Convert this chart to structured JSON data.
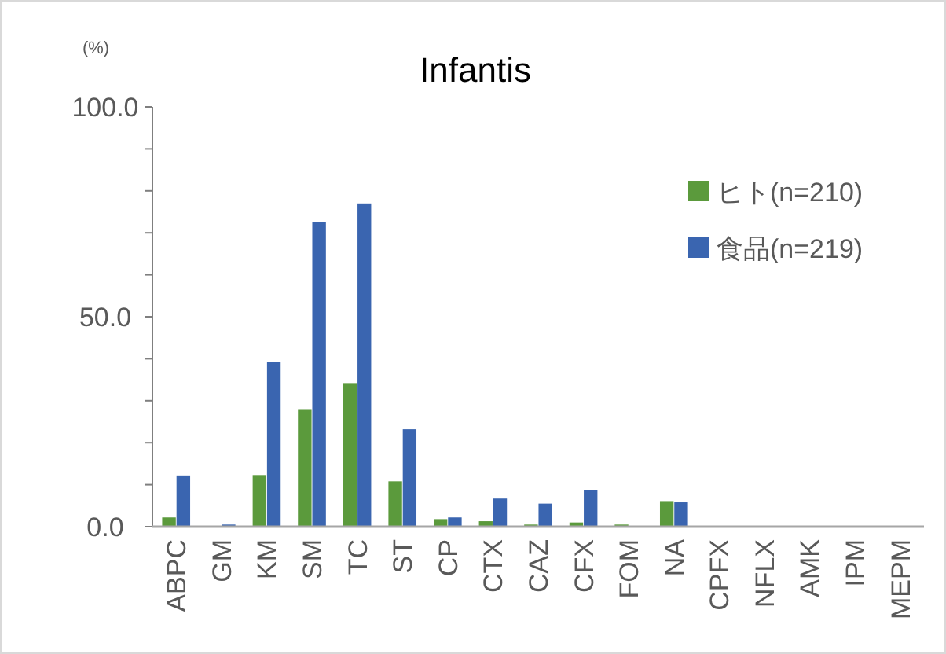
{
  "chart_data": {
    "type": "bar",
    "title": "Infantis",
    "ylabel": "(%)",
    "categories": [
      "ABPC",
      "GM",
      "KM",
      "SM",
      "TC",
      "ST",
      "CP",
      "CTX",
      "CAZ",
      "CFX",
      "FOM",
      "NA",
      "CPFX",
      "NFLX",
      "AMK",
      "IPM",
      "MEPM"
    ],
    "series": [
      {
        "name": "ヒト(n=210)",
        "color": "#5b9a3c",
        "values": [
          2.2,
          0,
          12.3,
          28.0,
          34.2,
          10.8,
          1.8,
          1.3,
          0.5,
          1.0,
          0.5,
          6.1,
          0,
          0,
          0,
          0,
          0
        ]
      },
      {
        "name": "食品(n=219)",
        "color": "#3a65b0",
        "values": [
          12.2,
          0.5,
          39.2,
          72.5,
          77.0,
          23.2,
          2.2,
          6.7,
          5.5,
          8.7,
          0,
          5.8,
          0,
          0,
          0,
          0,
          0
        ]
      }
    ],
    "ylim": [
      0,
      100
    ],
    "yticks": [
      {
        "value": 0,
        "label": "0.0"
      },
      {
        "value": 10,
        "label": null
      },
      {
        "value": 20,
        "label": null
      },
      {
        "value": 30,
        "label": null
      },
      {
        "value": 40,
        "label": null
      },
      {
        "value": 50,
        "label": "50.0"
      },
      {
        "value": 60,
        "label": null
      },
      {
        "value": 70,
        "label": null
      },
      {
        "value": 80,
        "label": null
      },
      {
        "value": 90,
        "label": null
      },
      {
        "value": 100,
        "label": "100.0"
      }
    ],
    "grid": false,
    "legend": "top right"
  }
}
